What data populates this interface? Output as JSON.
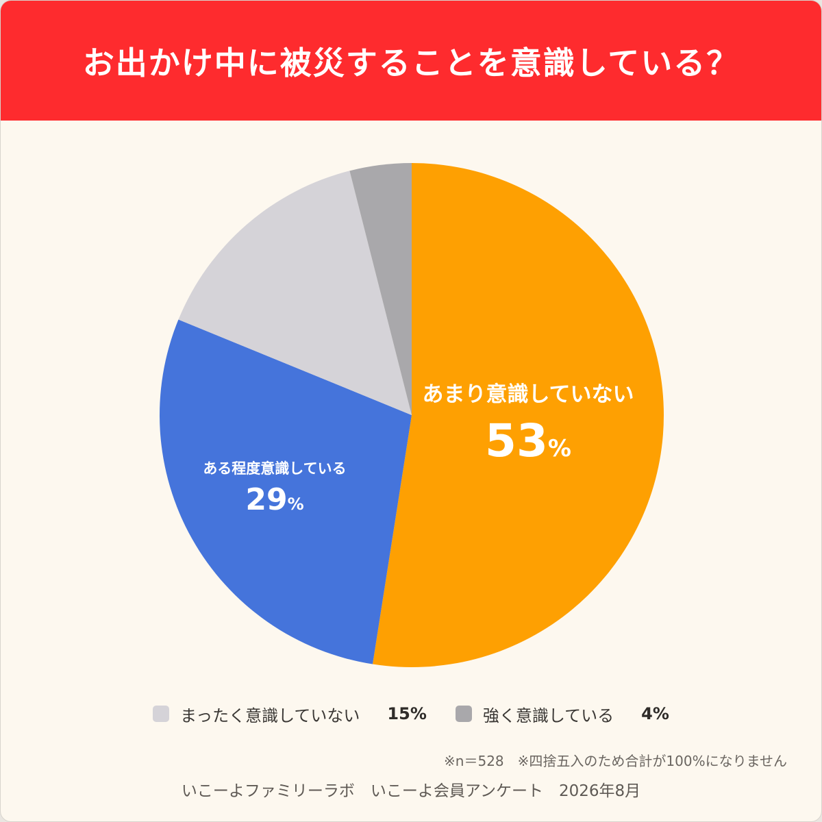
{
  "title": "お出かけ中に被災することを意識している？",
  "chart_data": {
    "type": "pie",
    "start": "12 o'clock",
    "direction": "clockwise",
    "slices": [
      {
        "label": "あまり意識していない",
        "value": 53,
        "display": "53",
        "unit": "%",
        "color": "#fea002"
      },
      {
        "label": "ある程度意識している",
        "value": 29,
        "display": "29",
        "unit": "%",
        "color": "#4574db"
      },
      {
        "label": "まったく意識していない",
        "value": 15,
        "display": "15%",
        "color": "#d5d3d8"
      },
      {
        "label": "強く意識している",
        "value": 4,
        "display": "4%",
        "color": "#a9a8ab"
      }
    ]
  },
  "legend": [
    {
      "label": "まったく意識していない",
      "value": "15%",
      "color": "#d5d3d8"
    },
    {
      "label": "強く意識している",
      "value": "4%",
      "color": "#a9a8ab"
    }
  ],
  "note": "※n＝528　※四捨五入のため合計が100%になりません",
  "source": "いこーよファミリーラボ　いこーよ会員アンケート　2026年8月"
}
